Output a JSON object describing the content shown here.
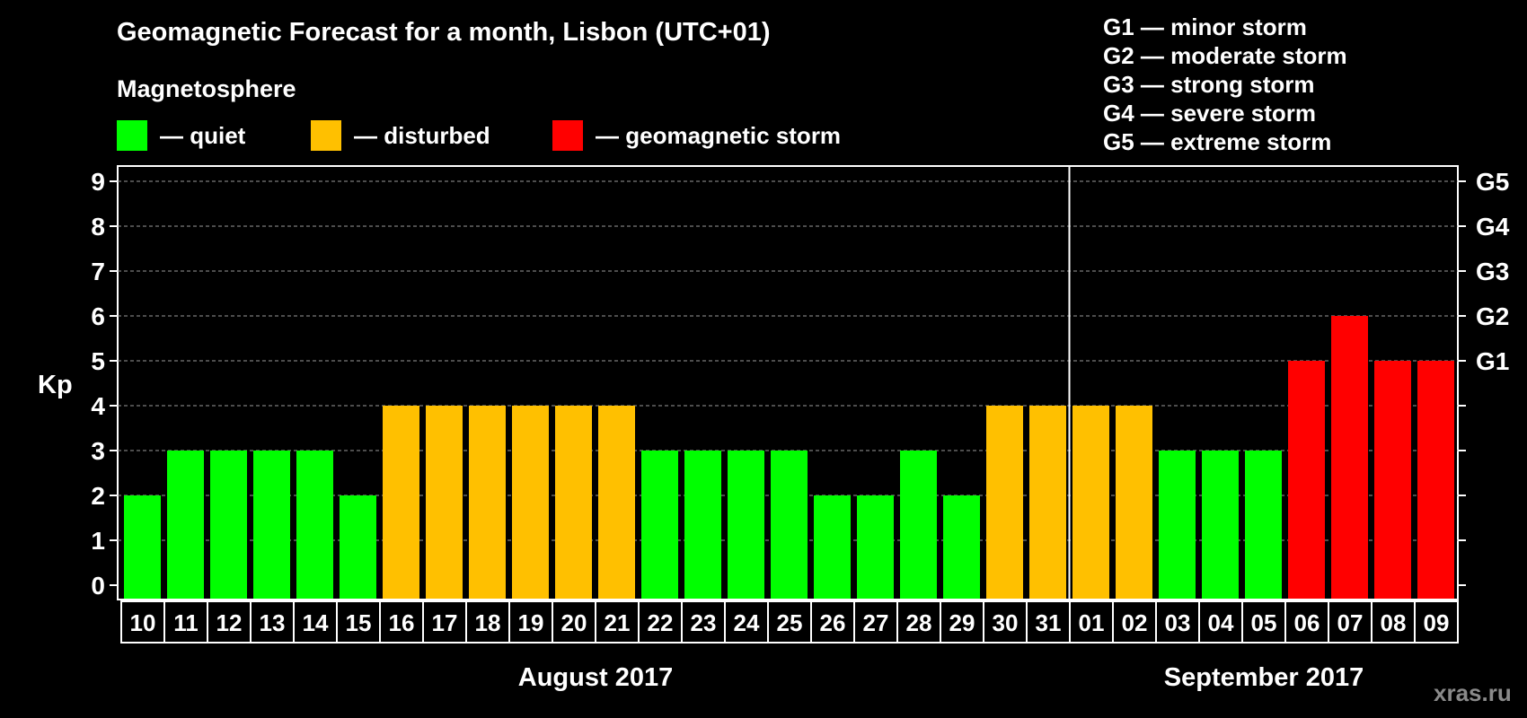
{
  "header": {
    "title": "Geomagnetic Forecast for a month, Lisbon (UTC+01)",
    "subtitle": "Magnetosphere"
  },
  "legend": [
    {
      "label": "— quiet",
      "color": "#00ff00"
    },
    {
      "label": "— disturbed",
      "color": "#ffc000"
    },
    {
      "label": "— geomagnetic storm",
      "color": "#ff0000"
    }
  ],
  "g_legend": [
    "G1 — minor storm",
    "G2 — moderate storm",
    "G3 — strong storm",
    "G4 — severe storm",
    "G5 — extreme storm"
  ],
  "watermark": "xras.ru",
  "chart_data": {
    "type": "bar",
    "title": "Geomagnetic Forecast for a month, Lisbon (UTC+01)",
    "ylabel": "Kp",
    "ylim": [
      0,
      9
    ],
    "yticks": [
      "0",
      "1",
      "2",
      "3",
      "4",
      "5",
      "6",
      "7",
      "8",
      "9"
    ],
    "right_axis_labels": [
      {
        "kp": 5,
        "label": "G1"
      },
      {
        "kp": 6,
        "label": "G2"
      },
      {
        "kp": 7,
        "label": "G3"
      },
      {
        "kp": 8,
        "label": "G4"
      },
      {
        "kp": 9,
        "label": "G5"
      }
    ],
    "categories": [
      "10",
      "11",
      "12",
      "13",
      "14",
      "15",
      "16",
      "17",
      "18",
      "19",
      "20",
      "21",
      "22",
      "23",
      "24",
      "25",
      "26",
      "27",
      "28",
      "29",
      "30",
      "31",
      "01",
      "02",
      "03",
      "04",
      "05",
      "06",
      "07",
      "08",
      "09"
    ],
    "values": [
      2,
      3,
      3,
      3,
      3,
      2,
      4,
      4,
      4,
      4,
      4,
      4,
      3,
      3,
      3,
      3,
      2,
      2,
      3,
      2,
      4,
      4,
      4,
      4,
      3,
      3,
      3,
      5,
      6,
      5,
      5
    ],
    "status": [
      "quiet",
      "quiet",
      "quiet",
      "quiet",
      "quiet",
      "quiet",
      "disturbed",
      "disturbed",
      "disturbed",
      "disturbed",
      "disturbed",
      "disturbed",
      "quiet",
      "quiet",
      "quiet",
      "quiet",
      "quiet",
      "quiet",
      "quiet",
      "quiet",
      "disturbed",
      "disturbed",
      "disturbed",
      "disturbed",
      "quiet",
      "quiet",
      "quiet",
      "storm",
      "storm",
      "storm",
      "storm"
    ],
    "status_colors": {
      "quiet": "#00ff00",
      "disturbed": "#ffc000",
      "storm": "#ff0000"
    },
    "months": [
      {
        "label": "August 2017",
        "start_index": 0,
        "end_index": 21
      },
      {
        "label": "September 2017",
        "start_index": 22,
        "end_index": 30
      }
    ],
    "grid": true
  }
}
